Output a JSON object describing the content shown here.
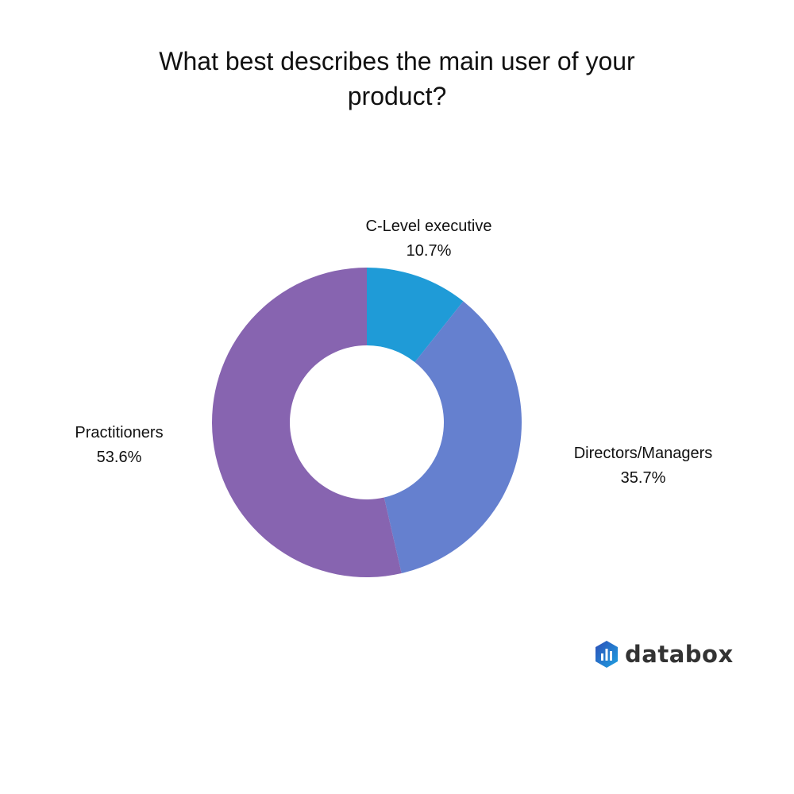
{
  "chart_data": {
    "type": "pie",
    "variant": "donut",
    "title": "What best describes the main user of your product?",
    "slices": [
      {
        "label": "C-Level executive",
        "value": 10.7,
        "display": "10.7%",
        "color": "#1f9bd7"
      },
      {
        "label": "Directors/Managers",
        "value": 35.7,
        "display": "35.7%",
        "color": "#6580cf"
      },
      {
        "label": "Practitioners",
        "value": 53.6,
        "display": "53.6%",
        "color": "#8764b0"
      }
    ],
    "start_angle": "top",
    "direction": "clockwise"
  },
  "branding": {
    "logo_text": "databox"
  }
}
